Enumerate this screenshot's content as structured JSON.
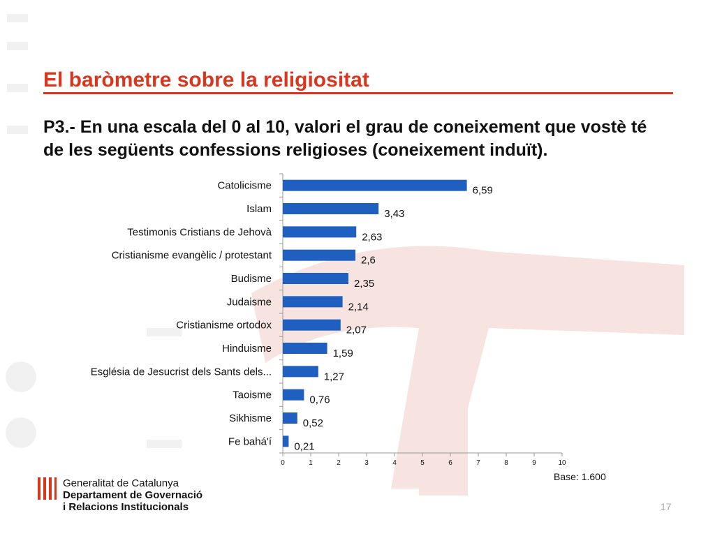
{
  "slide": {
    "title": "El baròmetre sobre la religiositat",
    "question": "P3.- En una escala del 0 al 10, valori el grau de coneixement que vostè té de les següents confessions religioses (coneixement induït).",
    "base": "Base: 1.600",
    "page_number": "17"
  },
  "footer": {
    "org_line1": "Generalitat de Catalunya",
    "org_line2": "Departament de Governació",
    "org_line3": "i Relacions Institucionals"
  },
  "colors": {
    "title": "#d9361e",
    "bar": "#1f5fbf",
    "watermark": "#f7e3e0"
  },
  "chart_data": {
    "type": "bar",
    "orientation": "horizontal",
    "categories": [
      "Catolicisme",
      "Islam",
      "Testimonis Cristians de Jehovà",
      "Cristianisme evangèlic / protestant",
      "Budisme",
      "Judaisme",
      "Cristianisme ortodox",
      "Hinduisme",
      "Església de Jesucrist dels Sants dels...",
      "Taoisme",
      "Sikhisme",
      "Fe bahá'í"
    ],
    "values": [
      6.59,
      3.43,
      2.63,
      2.6,
      2.35,
      2.14,
      2.07,
      1.59,
      1.27,
      0.76,
      0.52,
      0.21
    ],
    "value_labels": [
      "6,59",
      "3,43",
      "2,63",
      "2,6",
      "2,35",
      "2,14",
      "2,07",
      "1,59",
      "1,27",
      "0,76",
      "0,52",
      "0,21"
    ],
    "xlim": [
      0,
      10
    ],
    "xticks": [
      "0",
      "1",
      "2",
      "3",
      "4",
      "5",
      "6",
      "7",
      "8",
      "9",
      "10"
    ],
    "grid": false,
    "legend": "none"
  }
}
